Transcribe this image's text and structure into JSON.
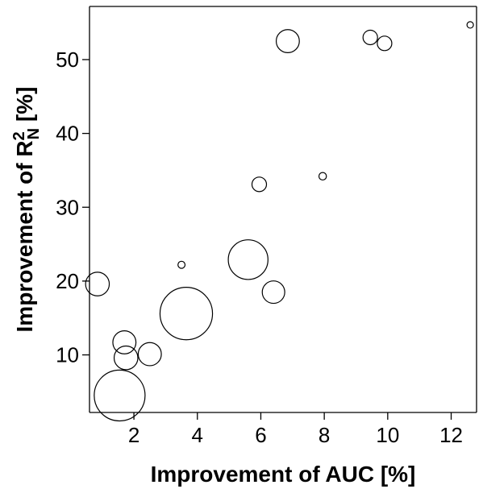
{
  "chart_data": {
    "type": "scatter",
    "title": "",
    "xlabel": "Improvement of AUC [%]",
    "ylabel": {
      "prefix": "Improvement of R",
      "superscript": "2",
      "subscript": "N",
      "suffix": " [%]"
    },
    "xlim": [
      0.6,
      12.8
    ],
    "ylim": [
      2.2,
      57.2
    ],
    "xticks": [
      2,
      4,
      6,
      8,
      10,
      12
    ],
    "yticks": [
      10,
      20,
      30,
      40,
      50
    ],
    "grid": false,
    "legend": "none",
    "bubble_fill": "none",
    "bubble_stroke": "#000000",
    "points": [
      {
        "x": 0.85,
        "y": 19.6,
        "size": 2.0
      },
      {
        "x": 1.55,
        "y": 4.5,
        "size": 9.2
      },
      {
        "x": 1.7,
        "y": 11.7,
        "size": 1.9
      },
      {
        "x": 1.75,
        "y": 9.6,
        "size": 2.0
      },
      {
        "x": 2.5,
        "y": 10.1,
        "size": 1.9
      },
      {
        "x": 3.5,
        "y": 22.2,
        "size": 0.18
      },
      {
        "x": 3.65,
        "y": 15.6,
        "size": 9.8
      },
      {
        "x": 5.6,
        "y": 22.9,
        "size": 5.6
      },
      {
        "x": 5.95,
        "y": 33.1,
        "size": 0.75
      },
      {
        "x": 6.4,
        "y": 18.5,
        "size": 1.8
      },
      {
        "x": 6.85,
        "y": 52.5,
        "size": 1.9
      },
      {
        "x": 7.95,
        "y": 34.2,
        "size": 0.2
      },
      {
        "x": 9.45,
        "y": 53.0,
        "size": 0.75
      },
      {
        "x": 9.9,
        "y": 52.2,
        "size": 0.75
      },
      {
        "x": 12.6,
        "y": 54.7,
        "size": 0.15
      }
    ]
  }
}
